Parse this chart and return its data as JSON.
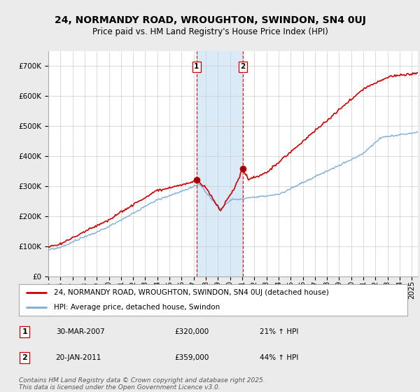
{
  "title": "24, NORMANDY ROAD, WROUGHTON, SWINDON, SN4 0UJ",
  "subtitle": "Price paid vs. HM Land Registry's House Price Index (HPI)",
  "ylim": [
    0,
    750000
  ],
  "yticks": [
    0,
    100000,
    200000,
    300000,
    400000,
    500000,
    600000,
    700000
  ],
  "ytick_labels": [
    "£0",
    "£100K",
    "£200K",
    "£300K",
    "£400K",
    "£500K",
    "£600K",
    "£700K"
  ],
  "xlim_start": 1995.0,
  "xlim_end": 2025.5,
  "sale1_x": 2007.24,
  "sale1_y": 320000,
  "sale2_x": 2011.05,
  "sale2_y": 359000,
  "sale1_label": "1",
  "sale2_label": "2",
  "sale1_date": "30-MAR-2007",
  "sale1_price": "£320,000",
  "sale1_hpi": "21% ↑ HPI",
  "sale2_date": "20-JAN-2011",
  "sale2_price": "£359,000",
  "sale2_hpi": "44% ↑ HPI",
  "highlight_color": "#daeaf7",
  "dashed_line_color": "#cc0000",
  "red_line_color": "#cc0000",
  "blue_line_color": "#7aacda",
  "legend_label_red": "24, NORMANDY ROAD, WROUGHTON, SWINDON, SN4 0UJ (detached house)",
  "legend_label_blue": "HPI: Average price, detached house, Swindon",
  "footer": "Contains HM Land Registry data © Crown copyright and database right 2025.\nThis data is licensed under the Open Government Licence v3.0.",
  "background_color": "#ebebeb",
  "plot_bg_color": "#ffffff",
  "title_fontsize": 10,
  "subtitle_fontsize": 8.5,
  "tick_fontsize": 7.5,
  "legend_fontsize": 7.5,
  "footer_fontsize": 6.5
}
